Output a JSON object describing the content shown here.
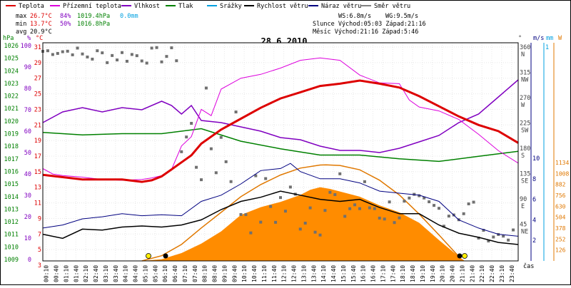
{
  "chart_data": {
    "type": "line",
    "title": "28.6.2010",
    "legend": [
      {
        "name": "Teplota",
        "color": "#dd0000"
      },
      {
        "name": "Přízemní teplota",
        "color": "#dd00dd"
      },
      {
        "name": "Vlhkost",
        "color": "#8000c0"
      },
      {
        "name": "Tlak",
        "color": "#008000"
      },
      {
        "name": "Srážky",
        "color": "#00a0e0"
      },
      {
        "name": "Rychlost větru",
        "color": "#000000"
      },
      {
        "name": "Náraz větru",
        "color": "#000080"
      },
      {
        "name": "Směr větru",
        "color": "#808080"
      }
    ],
    "stats": {
      "max": {
        "label": "max",
        "temp": "26.7°C",
        "hum": "84%",
        "press": "1019.4hPa",
        "rain": "0.0mm"
      },
      "min": {
        "label": "min",
        "temp": "13.7°C",
        "hum": "50%",
        "press": "1016.8hPa"
      },
      "avg": {
        "label": "avg",
        "temp": "20.9°C"
      }
    },
    "wind_info": {
      "ws": "WS:6.8m/s",
      "wg": "WG:9.5m/s"
    },
    "sun": "Slunce Východ:05:03  Západ:21:16",
    "moon": "Měsíc  Východ:21:16  Západ:5:46",
    "units": {
      "hpa": "hPa",
      "pct": "%",
      "degc": "°C",
      "deg": "°",
      "ms": "m/s",
      "mm": "mm",
      "w": "W"
    },
    "axis_hpa": [
      "1026",
      "1025",
      "1024",
      "1023",
      "1022",
      "1021",
      "1020",
      "1019",
      "1018",
      "1017",
      "1016",
      "1015",
      "1014",
      "1013",
      "1012",
      "1011",
      "1010",
      "1009"
    ],
    "axis_pct": [
      "100",
      "90",
      "80",
      "70",
      "60",
      "50",
      "40",
      "30",
      "20",
      "10",
      "0"
    ],
    "axis_temp": [
      "31",
      "29",
      "27",
      "25",
      "23",
      "21",
      "19",
      "17",
      "15",
      "13",
      "11",
      "9",
      "7",
      "5",
      "3"
    ],
    "axis_dir": [
      {
        "deg": "360",
        "dir": "N"
      },
      {
        "deg": "315",
        "dir": "NW"
      },
      {
        "deg": "270",
        "dir": "W"
      },
      {
        "deg": "225",
        "dir": "SW"
      },
      {
        "deg": "180",
        "dir": "S"
      },
      {
        "deg": "135",
        "dir": "SE"
      },
      {
        "deg": "90",
        "dir": "E"
      },
      {
        "deg": "45",
        "dir": "NE"
      }
    ],
    "axis_ms": [
      "10",
      "8",
      "6",
      "4",
      "2"
    ],
    "axis_mm_top": "1",
    "axis_w": [
      "1134",
      "1008",
      "882",
      "756",
      "630",
      "504",
      "378",
      "252",
      "126"
    ],
    "xticks": [
      "00:10",
      "00:40",
      "01:10",
      "01:40",
      "02:10",
      "02:40",
      "03:10",
      "03:40",
      "04:10",
      "04:40",
      "05:10",
      "05:40",
      "06:10",
      "06:40",
      "07:10",
      "07:40",
      "08:10",
      "08:40",
      "09:10",
      "09:40",
      "10:10",
      "10:40",
      "11:10",
      "11:40",
      "12:10",
      "12:40",
      "13:10",
      "13:40",
      "14:10",
      "14:40",
      "15:10",
      "15:40",
      "16:10",
      "16:40",
      "17:10",
      "17:40",
      "18:10",
      "18:40",
      "19:10",
      "19:40",
      "20:10",
      "20:40",
      "21:10",
      "21:40",
      "22:10",
      "22:40",
      "23:10",
      "23:40"
    ],
    "xlabel": "čas",
    "series": [
      {
        "name": "Teplota",
        "unit": "°C",
        "x": [
          0,
          1,
          2,
          3,
          4,
          5,
          5.5,
          6,
          6.5,
          7,
          7.5,
          8,
          9,
          10,
          11,
          12,
          13,
          14,
          15,
          16,
          17,
          18,
          19,
          20,
          21,
          22,
          23,
          24
        ],
        "y": [
          14.6,
          14.3,
          14.0,
          14.0,
          14.0,
          13.7,
          13.9,
          14.4,
          15.3,
          16.2,
          17.1,
          18.6,
          20.4,
          21.8,
          23.2,
          24.4,
          25.2,
          26.0,
          26.3,
          26.7,
          26.3,
          25.8,
          24.7,
          23.4,
          22.1,
          21.0,
          20.2,
          18.7
        ]
      },
      {
        "name": "Přízemní teplota",
        "unit": "°C",
        "x": [
          0,
          0.5,
          1,
          2,
          3,
          4,
          5,
          5.5,
          6,
          6.5,
          7,
          7.5,
          8,
          8.5,
          9,
          10,
          11,
          12,
          13,
          14,
          15,
          16,
          17,
          18,
          18.5,
          19,
          20,
          21,
          22,
          23,
          24
        ],
        "y": [
          15.4,
          14.7,
          14.5,
          14.3,
          14.0,
          13.9,
          14.0,
          14.2,
          14.5,
          15.3,
          18.3,
          19.5,
          23.0,
          22.2,
          25.6,
          27.0,
          27.5,
          28.3,
          29.3,
          29.6,
          29.3,
          27.4,
          26.4,
          26.3,
          24.2,
          23.3,
          22.8,
          21.7,
          19.8,
          17.7,
          16.1
        ]
      },
      {
        "name": "Vlhkost",
        "unit": "%",
        "x": [
          0,
          1,
          2,
          3,
          4,
          5,
          6,
          6.5,
          7,
          7.5,
          8,
          9,
          10,
          11,
          12,
          13,
          14,
          15,
          16,
          17,
          18,
          19,
          20,
          21,
          22,
          23,
          24
        ],
        "y": [
          64,
          69,
          71,
          69,
          71,
          70,
          74,
          72,
          68,
          72,
          65,
          64,
          62,
          60,
          57,
          56,
          53,
          51,
          51,
          50,
          52,
          55,
          58,
          64,
          68,
          76,
          84
        ]
      },
      {
        "name": "Tlak",
        "unit": "hPa",
        "x": [
          0,
          2,
          4,
          6,
          7,
          8,
          10,
          12,
          14,
          16,
          18,
          20,
          22,
          24
        ],
        "y": [
          1019.1,
          1018.9,
          1019.0,
          1019.0,
          1019.2,
          1019.4,
          1018.4,
          1017.8,
          1017.3,
          1017.3,
          1017.0,
          1016.8,
          1017.2,
          1017.6
        ]
      },
      {
        "name": "Sluneční záření",
        "unit": "W",
        "x": [
          0,
          5,
          6,
          7,
          8,
          9,
          10,
          11,
          12,
          13,
          13.5,
          14,
          14.5,
          15,
          16,
          17,
          18,
          19,
          20,
          21,
          21.3,
          24
        ],
        "y": [
          0,
          0,
          20,
          90,
          200,
          340,
          530,
          620,
          680,
          760,
          820,
          850,
          830,
          800,
          740,
          640,
          560,
          440,
          240,
          50,
          0,
          0
        ]
      },
      {
        "name": "Teoretické záření",
        "unit": "W",
        "x": [
          5,
          6,
          7,
          8,
          9,
          10,
          11,
          12,
          13,
          14,
          14.3,
          15,
          16,
          17,
          18,
          19,
          20,
          21
        ],
        "y": [
          0,
          60,
          190,
          380,
          560,
          740,
          880,
          990,
          1070,
          1105,
          1108,
          1100,
          1050,
          930,
          760,
          540,
          300,
          50
        ]
      },
      {
        "name": "Rychlost větru",
        "unit": "m/s",
        "x": [
          0,
          1,
          2,
          3,
          4,
          5,
          6,
          7,
          8,
          9,
          10,
          11,
          12,
          13,
          14,
          15,
          16,
          17,
          18,
          19,
          20,
          21,
          22,
          23,
          24
        ],
        "y": [
          2.6,
          2.2,
          3.1,
          3.0,
          3.3,
          3.4,
          3.3,
          3.5,
          4.0,
          5.0,
          5.8,
          6.2,
          6.8,
          6.4,
          6.0,
          5.8,
          6.0,
          5.2,
          4.6,
          4.6,
          3.5,
          2.7,
          2.3,
          1.8,
          1.6
        ]
      },
      {
        "name": "Náraz větru",
        "unit": "m/s",
        "x": [
          0,
          1,
          2,
          3,
          4,
          5,
          6,
          7,
          8,
          9,
          10,
          11,
          12,
          12.5,
          13,
          14,
          15,
          16,
          17,
          18,
          19,
          20,
          21,
          22,
          23,
          24
        ],
        "y": [
          3.2,
          3.5,
          4.1,
          4.3,
          4.6,
          4.4,
          4.5,
          4.4,
          5.8,
          6.4,
          7.5,
          8.8,
          9.0,
          9.5,
          8.7,
          8.0,
          8.0,
          7.6,
          6.8,
          6.6,
          6.4,
          5.8,
          4.0,
          3.2,
          2.6,
          2.4
        ]
      }
    ]
  }
}
